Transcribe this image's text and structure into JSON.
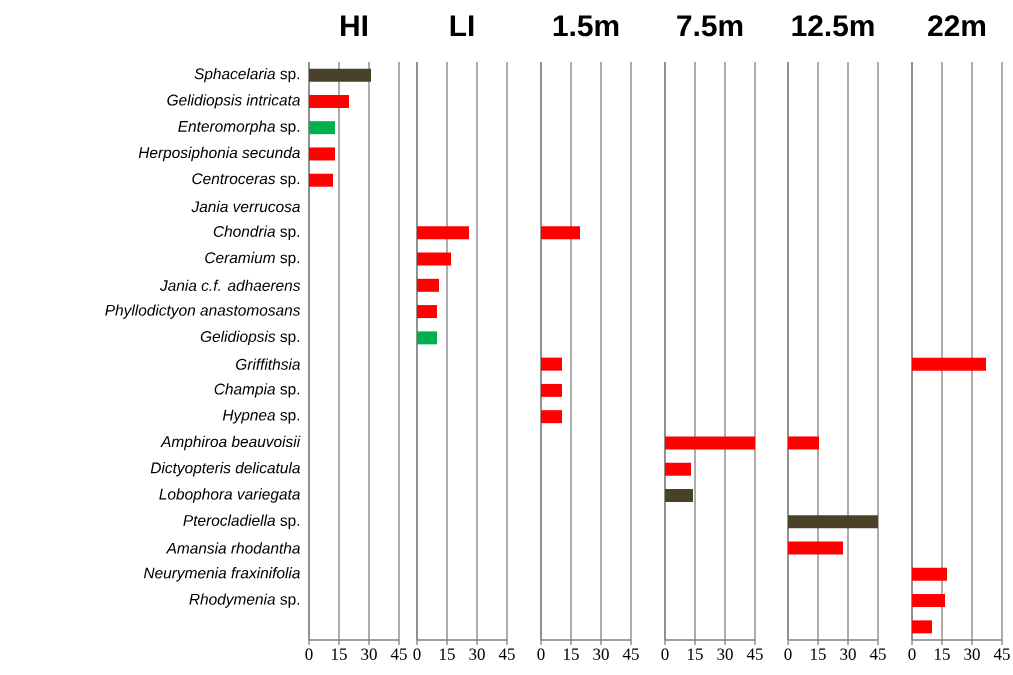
{
  "chart_data": [
    {
      "type": "bar",
      "orientation": "horizontal",
      "title": "HI",
      "categories": [
        "*Sphacelaria* sp.",
        "*Gelidiopsis intricata*",
        "*Enteromorpha* sp.",
        "*Herposiphonia secunda*",
        "*Centroceras* sp.",
        "*Jania verrucosa*",
        "*Chondria* sp.",
        "*Ceramium* sp.",
        "*Jania c.f. adhaerens*",
        "*Phyllodictyon anastomosans*",
        "*Gelidiopsis* sp.",
        "*Griffithsia*",
        "*Champia* sp.",
        "*Hypnea* sp.",
        "*Amphiroa beauvoisii*",
        "*Dictyopteris delicatula*",
        "*Lobophora variegata*",
        "*Pterocladiella* sp.",
        "*Amansia rhodantha*",
        "*Neurymenia fraxinifolia*",
        "*Rhodymenia* sp.",
        null
      ],
      "values": [
        31,
        20,
        13,
        13,
        12,
        null,
        null,
        null,
        null,
        null,
        null,
        null,
        null,
        null,
        null,
        null,
        null,
        null,
        null,
        null,
        null,
        null
      ],
      "colors": [
        "#4a4228",
        "#ff0000",
        "#00b050",
        "#ff0000",
        "#ff0000",
        null,
        null,
        null,
        null,
        null,
        null,
        null,
        null,
        null,
        null,
        null,
        null,
        null,
        null,
        null,
        null,
        null
      ],
      "xlim": [
        0,
        45
      ],
      "xticks": [
        0,
        15,
        30,
        45
      ],
      "grid": "x"
    },
    {
      "type": "bar",
      "orientation": "horizontal",
      "title": "LI",
      "categories": [
        null,
        null,
        null,
        null,
        null,
        null,
        null,
        null,
        null,
        null,
        null,
        null,
        null,
        null,
        null,
        null,
        null,
        null,
        null,
        null,
        null,
        null
      ],
      "values": [
        null,
        null,
        null,
        null,
        null,
        null,
        26,
        17,
        11,
        10,
        10,
        null,
        null,
        null,
        null,
        null,
        null,
        null,
        null,
        null,
        null,
        null
      ],
      "colors": [
        null,
        null,
        null,
        null,
        null,
        null,
        "#ff0000",
        "#ff0000",
        "#ff0000",
        "#ff0000",
        "#00b050",
        null,
        null,
        null,
        null,
        null,
        null,
        null,
        null,
        null,
        null,
        null
      ],
      "xlim": [
        0,
        45
      ],
      "xticks": [
        0,
        15,
        30,
        45
      ],
      "grid": "x"
    },
    {
      "type": "bar",
      "orientation": "horizontal",
      "title": "1.5m",
      "categories": [
        null,
        null,
        null,
        null,
        null,
        null,
        null,
        null,
        null,
        null,
        null,
        null,
        null,
        null,
        null,
        null,
        null,
        null,
        null,
        null,
        null,
        null
      ],
      "values": [
        null,
        null,
        null,
        null,
        null,
        null,
        19.5,
        null,
        null,
        null,
        null,
        10.5,
        10.5,
        10.5,
        null,
        null,
        null,
        null,
        null,
        null,
        null,
        null
      ],
      "colors": [
        null,
        null,
        null,
        null,
        null,
        null,
        "#ff0000",
        null,
        null,
        null,
        null,
        "#ff0000",
        "#ff0000",
        "#ff0000",
        null,
        null,
        null,
        null,
        null,
        null,
        null,
        null
      ],
      "xlim": [
        0,
        45
      ],
      "xticks": [
        0,
        15,
        30,
        45
      ],
      "grid": "x"
    },
    {
      "type": "bar",
      "orientation": "horizontal",
      "title": "7.5m",
      "categories": [
        null,
        null,
        null,
        null,
        null,
        null,
        null,
        null,
        null,
        null,
        null,
        null,
        null,
        null,
        null,
        null,
        null,
        null,
        null,
        null,
        null,
        null
      ],
      "values": [
        null,
        null,
        null,
        null,
        null,
        null,
        null,
        null,
        null,
        null,
        null,
        null,
        null,
        null,
        45,
        13,
        14,
        null,
        null,
        null,
        null,
        null
      ],
      "colors": [
        null,
        null,
        null,
        null,
        null,
        null,
        null,
        null,
        null,
        null,
        null,
        null,
        null,
        null,
        "#ff0000",
        "#ff0000",
        "#4a4228",
        null,
        null,
        null,
        null,
        null
      ],
      "xlim": [
        0,
        45
      ],
      "xticks": [
        0,
        15,
        30,
        45
      ],
      "grid": "x"
    },
    {
      "type": "bar",
      "orientation": "horizontal",
      "title": "12.5m",
      "categories": [
        null,
        null,
        null,
        null,
        null,
        null,
        null,
        null,
        null,
        null,
        null,
        null,
        null,
        null,
        null,
        null,
        null,
        null,
        null,
        null,
        null,
        null
      ],
      "values": [
        null,
        null,
        null,
        null,
        null,
        null,
        null,
        null,
        null,
        null,
        null,
        null,
        null,
        null,
        15.5,
        null,
        null,
        45,
        27.5,
        null,
        null,
        null
      ],
      "colors": [
        null,
        null,
        null,
        null,
        null,
        null,
        null,
        null,
        null,
        null,
        null,
        null,
        null,
        null,
        "#ff0000",
        null,
        null,
        "#4a4228",
        "#ff0000",
        null,
        null,
        null
      ],
      "xlim": [
        0,
        45
      ],
      "xticks": [
        0,
        15,
        30,
        45
      ],
      "grid": "x"
    },
    {
      "type": "bar",
      "orientation": "horizontal",
      "title": "22m",
      "categories": [
        null,
        null,
        null,
        null,
        null,
        null,
        null,
        null,
        null,
        null,
        null,
        null,
        null,
        null,
        null,
        null,
        null,
        null,
        null,
        null,
        null,
        null
      ],
      "values": [
        null,
        null,
        null,
        null,
        null,
        null,
        null,
        null,
        null,
        null,
        null,
        37,
        null,
        null,
        null,
        null,
        null,
        null,
        null,
        17.5,
        16.5,
        10
      ],
      "colors": [
        null,
        null,
        null,
        null,
        null,
        null,
        null,
        null,
        null,
        null,
        null,
        "#ff0000",
        null,
        null,
        null,
        null,
        null,
        null,
        null,
        "#ff0000",
        "#ff0000",
        "#ff0000"
      ],
      "xlim": [
        0,
        45
      ],
      "xticks": [
        0,
        15,
        30,
        45
      ],
      "grid": "x"
    }
  ]
}
